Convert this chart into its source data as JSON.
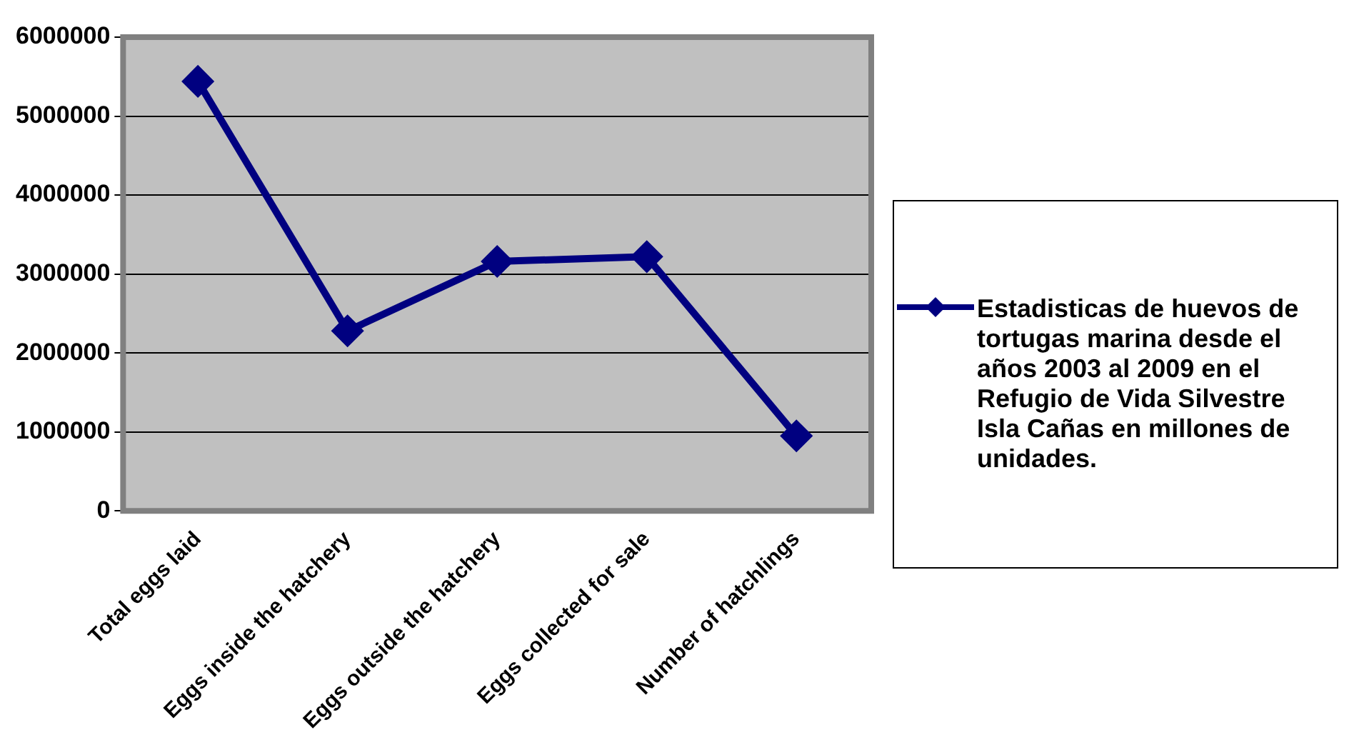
{
  "chart_data": {
    "type": "line",
    "categories": [
      "Total eggs laid",
      "Eggs inside the hatchery",
      "Eggs outside the hatchery",
      "Eggs collected for sale",
      "Number of hatchlings"
    ],
    "series": [
      {
        "name": "Estadisticas de huevos de tortugas marina desde el años 2003 al 2009 en el Refugio de Vida Silvestre Isla Cañas en millones de unidades.",
        "color": "#000080",
        "values": [
          5440000,
          2280000,
          3160000,
          3220000,
          950000
        ]
      }
    ],
    "ylim": [
      0,
      6000000
    ],
    "yticks": [
      0,
      1000000,
      2000000,
      3000000,
      4000000,
      5000000,
      6000000
    ],
    "grid": "y",
    "legend": "right",
    "marker": "diamond",
    "line_style": "solid"
  }
}
